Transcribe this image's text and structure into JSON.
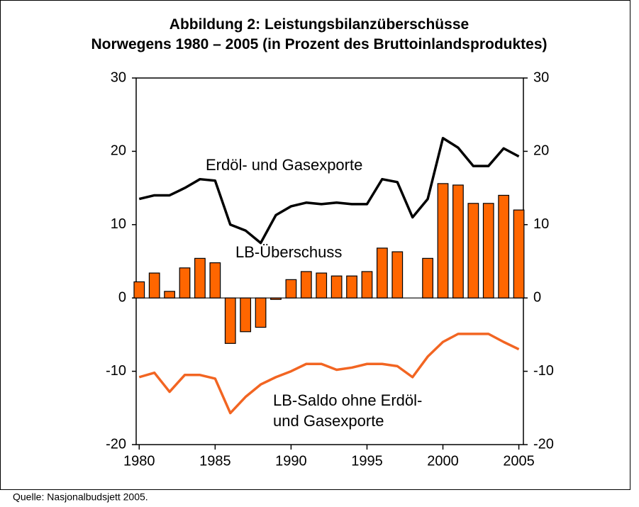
{
  "chart_data": {
    "type": "combo",
    "title": "Abbildung 2: Leistungsbilanzüberschüsse\nNorwegens 1980 – 2005 (in Prozent des Bruttoinlandsproduktes)",
    "source": "Quelle: Nasjonalbudsjett 2005.",
    "x": [
      1980,
      1981,
      1982,
      1983,
      1984,
      1985,
      1986,
      1987,
      1988,
      1989,
      1990,
      1991,
      1992,
      1993,
      1994,
      1995,
      1996,
      1997,
      1998,
      1999,
      2000,
      2001,
      2002,
      2003,
      2004,
      2005
    ],
    "xlim": [
      1979.8,
      2005.3
    ],
    "xticks": [
      1980,
      1985,
      1990,
      1995,
      2000,
      2005
    ],
    "ylim": [
      -20,
      30
    ],
    "yticks": [
      -20,
      -10,
      0,
      10,
      20,
      30
    ],
    "y2lim": [
      -20,
      30
    ],
    "y2ticks": [
      -20,
      -10,
      0,
      10,
      20,
      30
    ],
    "series": [
      {
        "name": "LB-Überschuss",
        "type": "bar",
        "color": "#ff6600",
        "values": [
          2.2,
          3.4,
          0.9,
          4.1,
          5.4,
          4.8,
          -6.2,
          -4.6,
          -4.0,
          -0.2,
          2.5,
          3.6,
          3.4,
          3.0,
          3.0,
          3.6,
          6.8,
          6.3,
          0,
          5.4,
          15.6,
          15.4,
          12.9,
          12.9,
          14.0,
          12.0
        ]
      },
      {
        "name": "Erdöl- und Gasexporte",
        "type": "line",
        "color": "#000000",
        "values": [
          13.5,
          14,
          14,
          15,
          16.2,
          16,
          10,
          9.2,
          7.5,
          11.3,
          12.5,
          13,
          12.8,
          13,
          12.8,
          12.8,
          16.2,
          15.8,
          11,
          13.5,
          21.8,
          20.5,
          18,
          18,
          20.4,
          19.3
        ]
      },
      {
        "name": "LB-Saldo ohne Erdöl-\nund Gasexporte",
        "type": "line",
        "color": "#f26522",
        "values": [
          -10.8,
          -10.2,
          -12.8,
          -10.5,
          -10.5,
          -11,
          -15.7,
          -13.5,
          -11.8,
          -10.8,
          -10,
          -9,
          -9,
          -9.8,
          -9.5,
          -9,
          -9,
          -9.3,
          -10.8,
          -8,
          -6,
          -4.9,
          -4.9,
          -4.9,
          -6,
          -7
        ]
      }
    ]
  }
}
